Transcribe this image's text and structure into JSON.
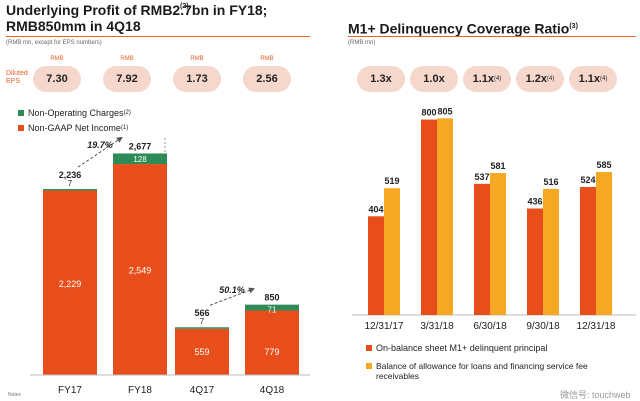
{
  "left": {
    "title_main": "Underlying Profit of RMB2.7bn in FY18;",
    "title_sup": "(2)",
    "title_line2": "RMB850mm in 4Q18",
    "units": "(RMB mn, except for EPS numbers)",
    "eps_label_1": "Diluted",
    "eps_label_2": "EPS",
    "eps_pills": [
      {
        "unit": "RMB",
        "value": "7.30"
      },
      {
        "unit": "RMB",
        "value": "7.92"
      },
      {
        "unit": "RMB",
        "value": "1.73"
      },
      {
        "unit": "RMB",
        "value": "2.56"
      }
    ],
    "legend": [
      {
        "label": "Non-Operating Charges",
        "sup": "(2)",
        "color": "#2e8b57"
      },
      {
        "label": "Non-GAAP Net Income",
        "sup": "(1)",
        "color": "#e84e1b"
      }
    ],
    "growth": [
      "19.7%",
      "50.1%"
    ],
    "notes": "Notes"
  },
  "right": {
    "title": "M1+ Delinquency Coverage Ratio",
    "title_sup": "(3)",
    "units": "(RMB mn)",
    "ratios": [
      {
        "value": "1.3x",
        "sup": ""
      },
      {
        "value": "1.0x",
        "sup": ""
      },
      {
        "value": "1.1x",
        "sup": "(4)"
      },
      {
        "value": "1.2x",
        "sup": "(4)"
      },
      {
        "value": "1.1x",
        "sup": "(4)"
      }
    ],
    "legend": [
      {
        "label": "On-balance sheet M1+ delinquent principal",
        "color": "#e84e1b"
      },
      {
        "label": "Balance of allowance for loans and financing service fee",
        "label2": "receivables",
        "color": "#f7a823"
      }
    ]
  },
  "watermark": "微信号: touchweb",
  "chart_data": [
    {
      "type": "bar",
      "stacked": true,
      "categories": [
        "FY17",
        "FY18",
        "4Q17",
        "4Q18"
      ],
      "series": [
        {
          "name": "Non-GAAP Net Income",
          "values": [
            2229,
            2549,
            559,
            779
          ],
          "labels": [
            "2,229",
            "2,549",
            "559",
            "779"
          ]
        },
        {
          "name": "Non-Operating Charges",
          "values": [
            7,
            128,
            7,
            71
          ],
          "labels": [
            "7",
            "128",
            "7",
            "71"
          ]
        }
      ],
      "totals": [
        2236,
        2677,
        566,
        850
      ],
      "total_labels": [
        "2,236",
        "2,677",
        "566",
        "850"
      ],
      "annotations": [
        {
          "from": "FY17",
          "to": "FY18",
          "text": "19.7%"
        },
        {
          "from": "4Q17",
          "to": "4Q18",
          "text": "50.1%"
        }
      ],
      "title": "Underlying Profit of RMB2.7bn in FY18; RMB850mm in 4Q18",
      "ylabel": "RMB mn",
      "ylim": [
        0,
        2900
      ]
    },
    {
      "type": "bar",
      "categories": [
        "12/31/17",
        "3/31/18",
        "6/30/18",
        "9/30/18",
        "12/31/18"
      ],
      "series": [
        {
          "name": "On-balance sheet M1+ delinquent principal",
          "values": [
            404,
            800,
            537,
            436,
            524
          ]
        },
        {
          "name": "Balance of allowance for loans and financing service fee receivables",
          "values": [
            519,
            805,
            581,
            516,
            585
          ]
        }
      ],
      "coverage_ratios": [
        "1.3x",
        "1.0x",
        "1.1x",
        "1.2x",
        "1.1x"
      ],
      "title": "M1+ Delinquency Coverage Ratio",
      "ylabel": "RMB mn",
      "ylim": [
        0,
        880
      ]
    }
  ]
}
